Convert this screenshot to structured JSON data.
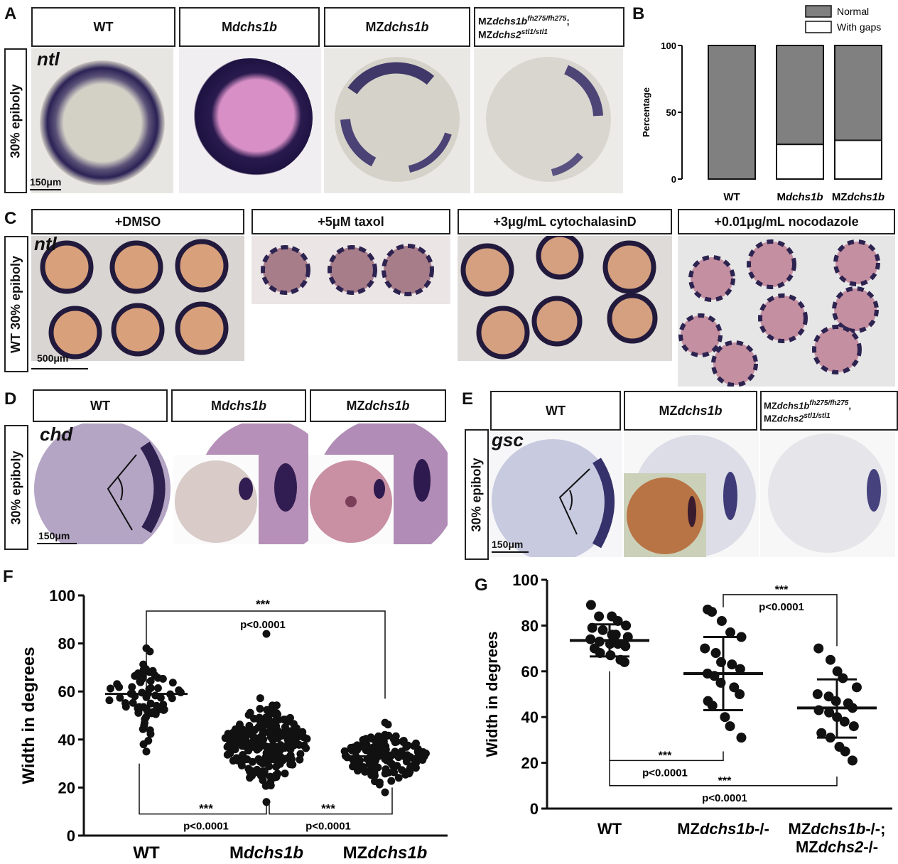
{
  "panels": {
    "A": {
      "letter": "A",
      "headers": [
        "WT",
        "Mdchs1b",
        "MZdchs1b",
        "MZdchs1bfh275/fh275; MZdchs2stl1/stl1"
      ],
      "side_label": "30% epiboly",
      "gene": "ntl",
      "scale": "150μm"
    },
    "B": {
      "letter": "B"
    },
    "C": {
      "letter": "C",
      "headers": [
        "+DMSO",
        "+5μM taxol",
        "+3μg/mL cytochalasinD",
        "+0.01μg/mL nocodazole"
      ],
      "side_label": "WT 30% epiboly",
      "gene": "ntl",
      "scale": "500μm"
    },
    "D": {
      "letter": "D",
      "headers": [
        "WT",
        "Mdchs1b",
        "MZdchs1b"
      ],
      "side_label": "30% epiboly",
      "gene": "chd",
      "scale": "150μm"
    },
    "E": {
      "letter": "E",
      "headers": [
        "WT",
        "MZdchs1b",
        "MZdchs1bfh275/fh275; MZdchs2stl1/stl1"
      ],
      "side_label": "30% epiboly",
      "gene": "gsc",
      "scale": "150μm"
    },
    "F": {
      "letter": "F"
    },
    "G": {
      "letter": "G"
    }
  },
  "chart_data": [
    {
      "id": "B",
      "type": "bar",
      "stacked": true,
      "categories": [
        "WT",
        "Mdchs1b",
        "MZdchs1b"
      ],
      "series": [
        {
          "name": "Normal",
          "values": [
            100,
            74,
            71
          ],
          "color": "#808080"
        },
        {
          "name": "With gaps",
          "values": [
            0,
            26,
            29
          ],
          "color": "#ffffff"
        }
      ],
      "ylabel": "Percentage",
      "ylim": [
        0,
        100
      ],
      "yticks": [
        0,
        50,
        100
      ],
      "legend": "top-right"
    },
    {
      "id": "F",
      "type": "scatter",
      "categories": [
        "WT",
        "Mdchs1b",
        "MZdchs1b"
      ],
      "ylabel": "Width in degrees",
      "ylim": [
        0,
        100
      ],
      "yticks": [
        0,
        20,
        40,
        60,
        80,
        100
      ],
      "groups": [
        {
          "name": "WT",
          "mean": 59,
          "sd_low": 55,
          "sd_high": 63,
          "min": 35,
          "max": 78,
          "n": 70
        },
        {
          "name": "Mdchs1b",
          "mean": 38,
          "sd_low": 30,
          "sd_high": 46,
          "min": 14,
          "max": 84,
          "n": 220
        },
        {
          "name": "MZdchs1b",
          "mean": 33,
          "sd_low": 27,
          "sd_high": 38,
          "min": 18,
          "max": 47,
          "n": 150
        }
      ],
      "comparisons": [
        {
          "pair": [
            "WT",
            "MZdchs1b"
          ],
          "stars": "***",
          "p": "p<0.0001"
        },
        {
          "pair": [
            "WT",
            "Mdchs1b"
          ],
          "stars": "***",
          "p": "p<0.0001"
        },
        {
          "pair": [
            "Mdchs1b",
            "MZdchs1b"
          ],
          "stars": "***",
          "p": "p<0.0001"
        }
      ]
    },
    {
      "id": "G",
      "type": "scatter",
      "categories": [
        "WT",
        "MZdchs1b-/-",
        "MZdchs1b-/-; MZdchs2-/-"
      ],
      "ylabel": "Width in degrees",
      "ylim": [
        0,
        100
      ],
      "yticks": [
        0,
        20,
        40,
        60,
        80,
        100
      ],
      "groups": [
        {
          "name": "WT",
          "mean": 73.5,
          "sd_low": 66.5,
          "sd_high": 80.5,
          "values": [
            89,
            84,
            84,
            82,
            80,
            79,
            78,
            76,
            76,
            75,
            74,
            73,
            72,
            72,
            71,
            70,
            68,
            67,
            65,
            64
          ]
        },
        {
          "name": "MZdchs1b-/-",
          "mean": 59,
          "sd_low": 43,
          "sd_high": 75,
          "values": [
            87,
            86,
            82,
            77,
            75,
            70,
            68,
            64,
            63,
            61,
            59,
            58,
            55,
            53,
            50,
            47,
            45,
            40,
            36,
            31
          ]
        },
        {
          "name": "MZdchs1b-/-; MZdchs2-/-",
          "mean": 44,
          "sd_low": 31,
          "sd_high": 56.5,
          "values": [
            70,
            65,
            60,
            57,
            53,
            50,
            49,
            47,
            46,
            44,
            43,
            42,
            40,
            38,
            36,
            33,
            31,
            27,
            25,
            21
          ]
        }
      ],
      "comparisons": [
        {
          "pair": [
            "MZdchs1b-/-",
            "MZdchs1b-/-; MZdchs2-/-"
          ],
          "stars": "***",
          "p": "p<0.0001"
        },
        {
          "pair": [
            "WT",
            "MZdchs1b-/-"
          ],
          "stars": "***",
          "p": "p<0.0001"
        },
        {
          "pair": [
            "WT",
            "MZdchs1b-/-; MZdchs2-/-"
          ],
          "stars": "***",
          "p": "p<0.0001"
        }
      ]
    }
  ]
}
